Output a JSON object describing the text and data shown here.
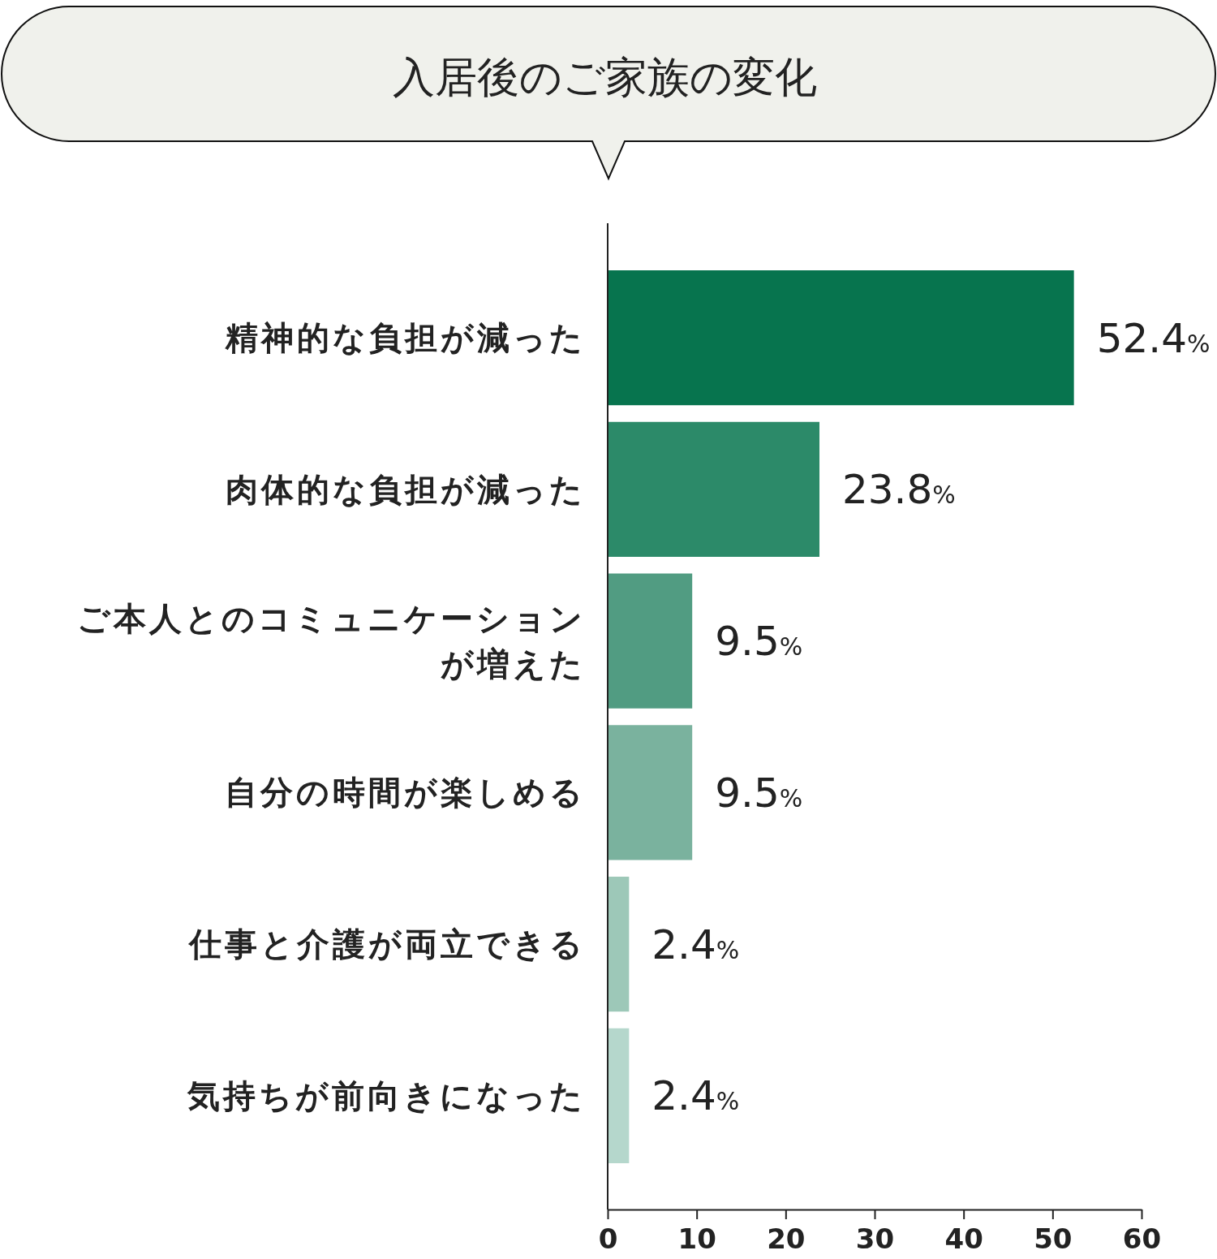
{
  "chart_data": {
    "type": "bar",
    "orientation": "horizontal",
    "title": "入居後のご家族の変化",
    "categories": [
      "精神的な負担が減った",
      "肉体的な負担が減った",
      "ご本人とのコミュニケーションが増えた",
      "自分の時間が楽しめる",
      "仕事と介護が両立できる",
      "気持ちが前向きになった"
    ],
    "values": [
      52.4,
      23.8,
      9.5,
      9.5,
      2.4,
      2.4
    ],
    "colors": [
      "#07744e",
      "#2c8a69",
      "#519c82",
      "#7ab29e",
      "#9dc8b8",
      "#b5d7cc"
    ],
    "value_labels": [
      "52.4%",
      "23.8%",
      "9.5%",
      "9.5%",
      "2.4%",
      "2.4%"
    ],
    "xlim": [
      0,
      60
    ],
    "xticks": [
      0,
      10,
      20,
      30,
      40,
      50,
      60
    ]
  }
}
